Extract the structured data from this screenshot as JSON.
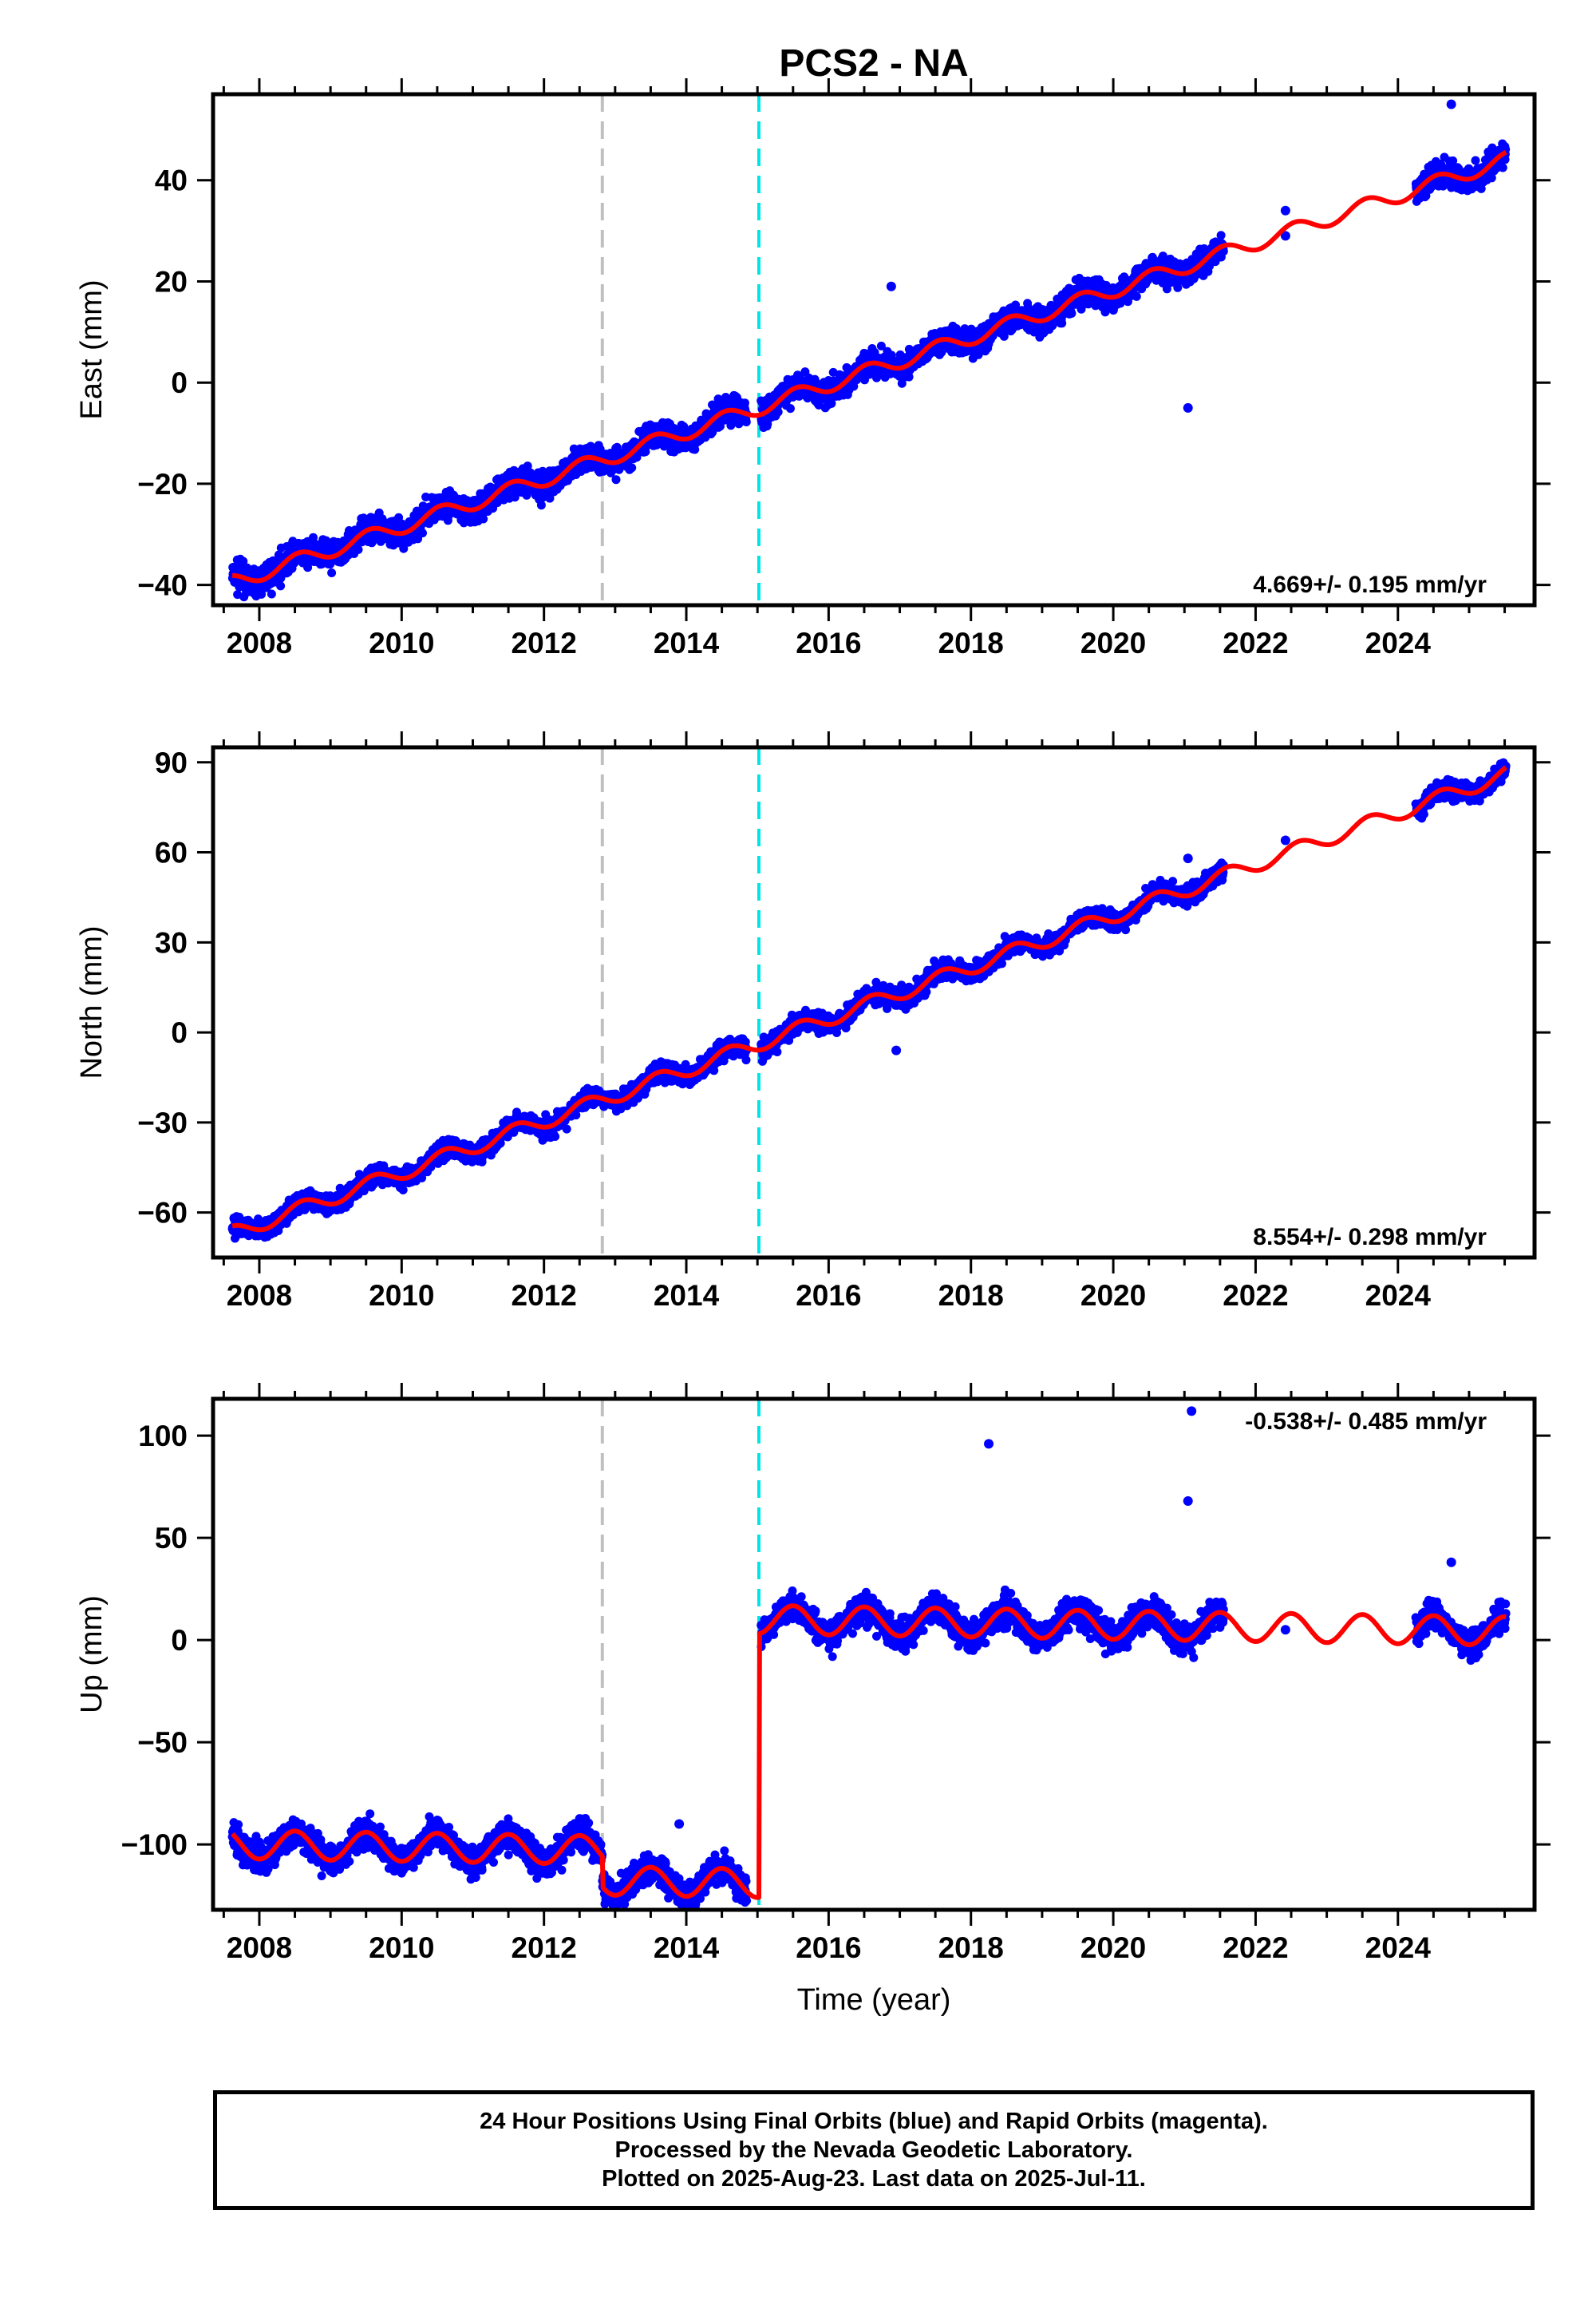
{
  "title": "PCS2 - NA",
  "xlabel": "Time (year)",
  "footer": {
    "line1": "24 Hour Positions Using Final Orbits (blue) and Rapid Orbits (magenta).",
    "line2": "Processed by the Nevada Geodetic Laboratory.",
    "line3": "Plotted on 2025-Aug-23. Last data on 2025-Jul-11."
  },
  "colors": {
    "final_orbits": "#0000ff",
    "model_fit": "#ff0000",
    "gray_marker": "#c0c0c0",
    "cyan_marker": "#00e5e5"
  },
  "chart_data": [
    {
      "type": "scatter",
      "component": "east",
      "ylabel": "East (mm)",
      "xlim": [
        2007.35,
        2025.92
      ],
      "ylim": [
        -44,
        57
      ],
      "xticks": [
        2008,
        2010,
        2012,
        2014,
        2016,
        2018,
        2020,
        2022,
        2024
      ],
      "yticks": [
        -40,
        -20,
        0,
        20,
        40
      ],
      "yticklabels": [
        "−40",
        "−20",
        "0",
        "20",
        "40"
      ],
      "rate_label": "4.669+/- 0.195 mm/yr",
      "rate_position": "bottom-right",
      "vlines": [
        {
          "x": 2012.82,
          "color": "gray"
        },
        {
          "x": 2015.02,
          "color": "cyan"
        }
      ],
      "data_segments": [
        [
          2007.62,
          2014.85
        ],
        [
          2015.05,
          2021.55
        ],
        [
          2024.25,
          2025.52
        ]
      ],
      "isolated_points": [
        [
          2016.88,
          19
        ],
        [
          2021.05,
          -5
        ],
        [
          2022.42,
          29
        ],
        [
          2022.42,
          34
        ],
        [
          2024.75,
          55
        ]
      ],
      "model": {
        "type": "trend_annual",
        "t0": 2007.62,
        "y0": -39.5,
        "rate": 4.669,
        "annual_amp": 1.5,
        "annual_phase": 0.3,
        "steps": [
          {
            "x": 2015.02,
            "dy": 0
          }
        ],
        "scatter_sd": 1.8
      }
    },
    {
      "type": "scatter",
      "component": "north",
      "ylabel": "North (mm)",
      "xlim": [
        2007.35,
        2025.92
      ],
      "ylim": [
        -75,
        95
      ],
      "xticks": [
        2008,
        2010,
        2012,
        2014,
        2016,
        2018,
        2020,
        2022,
        2024
      ],
      "yticks": [
        -60,
        -30,
        0,
        30,
        60,
        90
      ],
      "yticklabels": [
        "−60",
        "−30",
        "0",
        "30",
        "60",
        "90"
      ],
      "rate_label": "8.554+/- 0.298 mm/yr",
      "rate_position": "bottom-right",
      "vlines": [
        {
          "x": 2012.82,
          "color": "gray"
        },
        {
          "x": 2015.02,
          "color": "cyan"
        }
      ],
      "data_segments": [
        [
          2007.62,
          2014.85
        ],
        [
          2015.05,
          2021.55
        ],
        [
          2024.25,
          2025.52
        ]
      ],
      "isolated_points": [
        [
          2016.95,
          -6
        ],
        [
          2021.05,
          58
        ],
        [
          2022.42,
          64
        ]
      ],
      "model": {
        "type": "trend_annual",
        "t0": 2007.62,
        "y0": -67,
        "rate": 8.554,
        "annual_amp": 2.5,
        "annual_phase": 0.35,
        "steps": [
          {
            "x": 2015.02,
            "dy": 0
          }
        ],
        "scatter_sd": 2.2
      }
    },
    {
      "type": "scatter",
      "component": "up",
      "ylabel": "Up (mm)",
      "xlim": [
        2007.35,
        2025.92
      ],
      "ylim": [
        -132,
        118
      ],
      "xticks": [
        2008,
        2010,
        2012,
        2014,
        2016,
        2018,
        2020,
        2022,
        2024
      ],
      "yticks": [
        -100,
        -50,
        0,
        50,
        100
      ],
      "yticklabels": [
        "−100",
        "−50",
        "0",
        "50",
        "100"
      ],
      "rate_label": "-0.538+/- 0.485 mm/yr",
      "rate_position": "top-right",
      "vlines": [
        {
          "x": 2012.82,
          "color": "gray"
        },
        {
          "x": 2015.02,
          "color": "cyan"
        }
      ],
      "data_segments": [
        [
          2007.62,
          2014.85
        ],
        [
          2015.05,
          2021.55
        ],
        [
          2024.25,
          2025.52
        ]
      ],
      "isolated_points": [
        [
          2018.25,
          96
        ],
        [
          2021.05,
          68
        ],
        [
          2021.1,
          112
        ],
        [
          2024.75,
          38
        ],
        [
          2013.9,
          -90
        ],
        [
          2022.42,
          5
        ]
      ],
      "model": {
        "type": "trend_annual",
        "t0": 2007.62,
        "y0": -100,
        "rate": -0.538,
        "annual_amp": 7,
        "annual_phase": 0.25,
        "steps": [
          {
            "x": 2012.82,
            "dy": -15
          },
          {
            "x": 2015.02,
            "dy": 129
          }
        ],
        "scatter_sd": 5
      }
    }
  ]
}
